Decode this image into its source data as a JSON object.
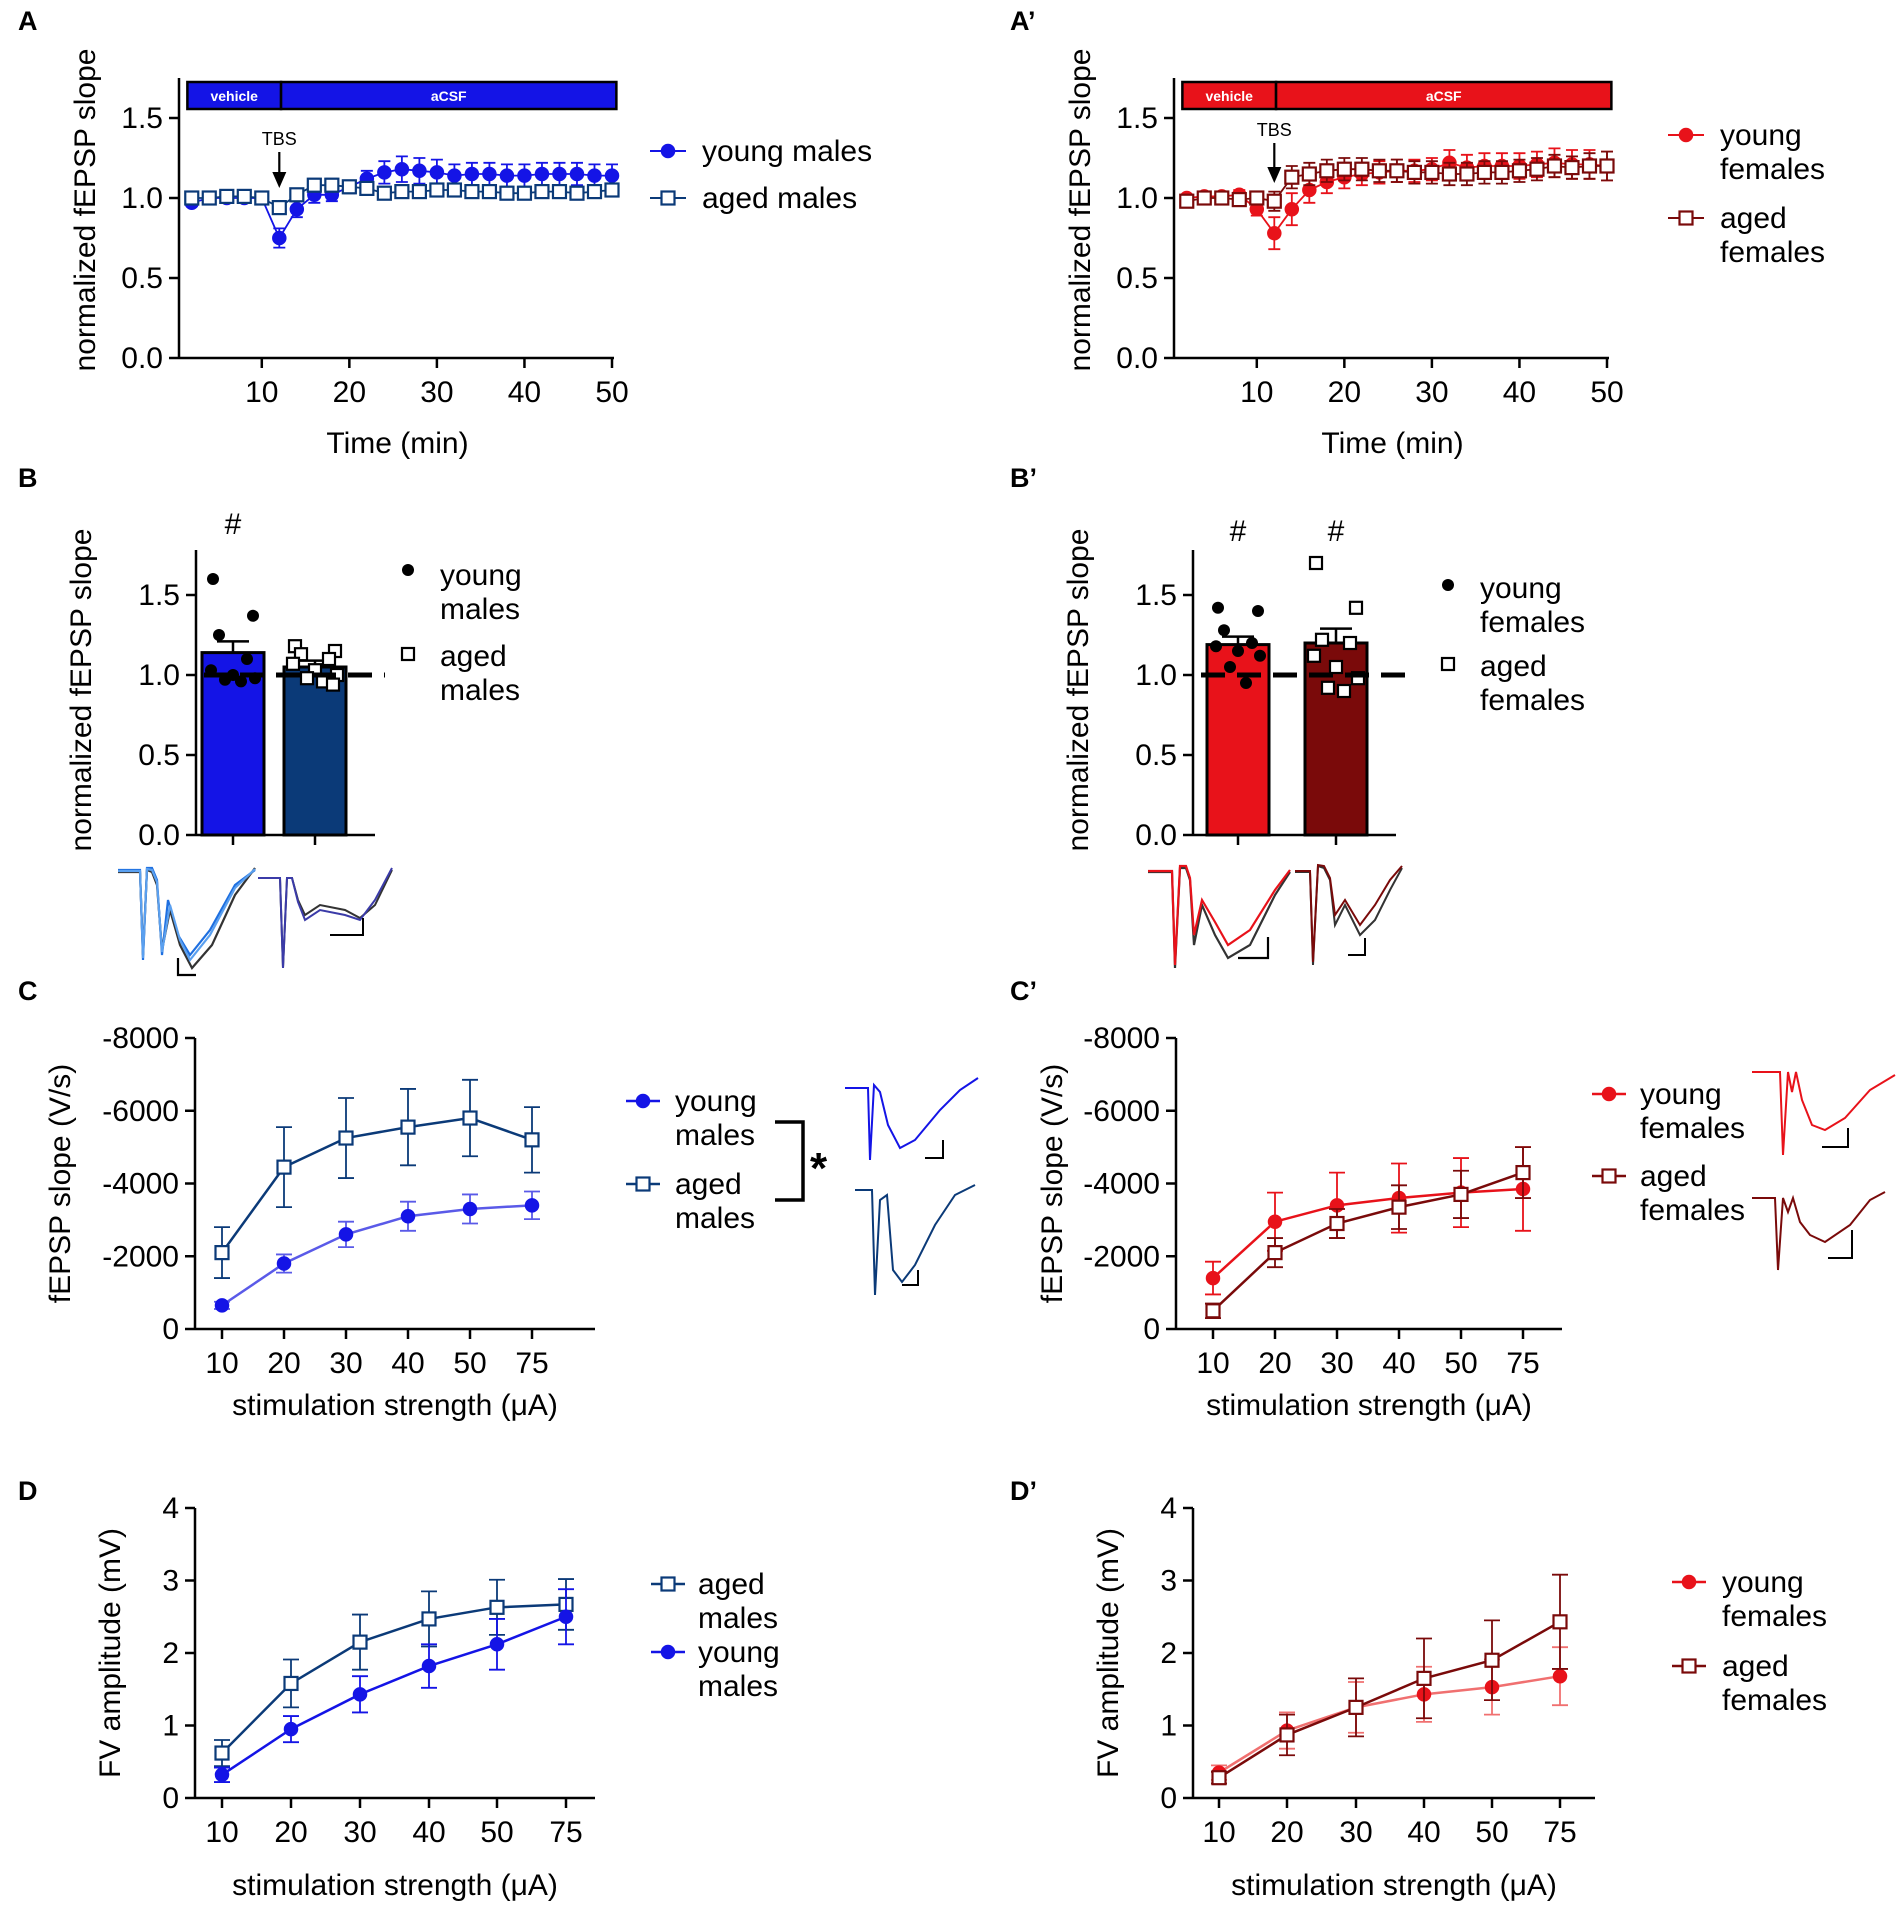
{
  "colors": {
    "young_male": "#1414e6",
    "aged_male": "#0b3a78",
    "young_male_light": "#5a5ae8",
    "young_female": "#e8121a",
    "aged_female": "#7a0a0a",
    "young_female_light": "#f07070"
  },
  "panels": {
    "A": "A",
    "A2": "A’",
    "B": "B",
    "B2": "B’",
    "C": "C",
    "C2": "C’",
    "D": "D",
    "D2": "D’"
  },
  "chart_data": [
    {
      "id": "A",
      "type": "line",
      "ylabel": "normalized fEPSP slope",
      "xlabel": "Time (min)",
      "xlim": [
        1,
        50
      ],
      "ylim": [
        0,
        1.75
      ],
      "xticks": [
        "10",
        "20",
        "30",
        "40",
        "50"
      ],
      "yticks": [
        "0.0",
        "0.5",
        "1.0",
        "1.5"
      ],
      "bar_labels": {
        "vehicle": "vehicle",
        "acsf": "aCSF"
      },
      "annotation": "TBS",
      "series": [
        {
          "name": "young males",
          "marker": "circle",
          "x": [
            2,
            4,
            6,
            8,
            10,
            12,
            14,
            16,
            18,
            20,
            22,
            24,
            26,
            28,
            30,
            32,
            34,
            36,
            38,
            40,
            42,
            44,
            46,
            48,
            50
          ],
          "values": [
            0.97,
            1.0,
            1.0,
            1.0,
            1.0,
            0.75,
            0.93,
            1.02,
            1.02,
            1.07,
            1.12,
            1.16,
            1.18,
            1.17,
            1.16,
            1.14,
            1.15,
            1.15,
            1.14,
            1.14,
            1.15,
            1.15,
            1.15,
            1.14,
            1.14
          ],
          "err": [
            0.02,
            0.02,
            0.02,
            0.02,
            0.02,
            0.06,
            0.05,
            0.05,
            0.04,
            0.04,
            0.05,
            0.07,
            0.08,
            0.08,
            0.08,
            0.07,
            0.07,
            0.07,
            0.07,
            0.07,
            0.07,
            0.07,
            0.07,
            0.07,
            0.07
          ]
        },
        {
          "name": "aged males",
          "marker": "square",
          "x": [
            2,
            4,
            6,
            8,
            10,
            12,
            14,
            16,
            18,
            20,
            22,
            24,
            26,
            28,
            30,
            32,
            34,
            36,
            38,
            40,
            42,
            44,
            46,
            48,
            50
          ],
          "values": [
            1.0,
            1.0,
            1.01,
            1.01,
            1.0,
            0.94,
            1.02,
            1.08,
            1.08,
            1.07,
            1.06,
            1.03,
            1.04,
            1.04,
            1.05,
            1.05,
            1.04,
            1.04,
            1.03,
            1.03,
            1.04,
            1.04,
            1.03,
            1.04,
            1.05
          ],
          "err": [
            0.02,
            0.02,
            0.02,
            0.02,
            0.02,
            0.04,
            0.04,
            0.04,
            0.04,
            0.04,
            0.04,
            0.04,
            0.04,
            0.04,
            0.04,
            0.04,
            0.04,
            0.04,
            0.04,
            0.04,
            0.04,
            0.04,
            0.04,
            0.04,
            0.04
          ]
        }
      ],
      "legend": [
        "young males",
        "aged males"
      ]
    },
    {
      "id": "A2",
      "type": "line",
      "ylabel": "normalized fEPSP slope",
      "xlabel": "Time (min)",
      "xlim": [
        1,
        50
      ],
      "ylim": [
        0,
        1.75
      ],
      "xticks": [
        "10",
        "20",
        "30",
        "40",
        "50"
      ],
      "yticks": [
        "0.0",
        "0.5",
        "1.0",
        "1.5"
      ],
      "bar_labels": {
        "vehicle": "vehicle",
        "acsf": "aCSF"
      },
      "annotation": "TBS",
      "series": [
        {
          "name": "young females",
          "marker": "circle",
          "x": [
            2,
            4,
            6,
            8,
            10,
            12,
            14,
            16,
            18,
            20,
            22,
            24,
            26,
            28,
            30,
            32,
            34,
            36,
            38,
            40,
            42,
            44,
            46,
            48,
            50
          ],
          "values": [
            1.0,
            1.01,
            1.01,
            1.02,
            0.93,
            0.78,
            0.93,
            1.05,
            1.1,
            1.13,
            1.15,
            1.16,
            1.17,
            1.17,
            1.18,
            1.22,
            1.19,
            1.2,
            1.2,
            1.2,
            1.21,
            1.22,
            1.21,
            1.21,
            1.2
          ],
          "err": [
            0.02,
            0.02,
            0.02,
            0.03,
            0.04,
            0.1,
            0.1,
            0.08,
            0.07,
            0.07,
            0.07,
            0.07,
            0.07,
            0.07,
            0.07,
            0.08,
            0.08,
            0.08,
            0.08,
            0.08,
            0.08,
            0.09,
            0.09,
            0.09,
            0.09
          ]
        },
        {
          "name": "aged females",
          "marker": "square",
          "x": [
            2,
            4,
            6,
            8,
            10,
            12,
            14,
            16,
            18,
            20,
            22,
            24,
            26,
            28,
            30,
            32,
            34,
            36,
            38,
            40,
            42,
            44,
            46,
            48,
            50
          ],
          "values": [
            0.98,
            1.0,
            1.0,
            0.99,
            1.0,
            0.98,
            1.13,
            1.15,
            1.17,
            1.18,
            1.18,
            1.17,
            1.17,
            1.16,
            1.16,
            1.15,
            1.15,
            1.16,
            1.16,
            1.17,
            1.18,
            1.2,
            1.19,
            1.2,
            1.2
          ],
          "err": [
            0.02,
            0.02,
            0.02,
            0.03,
            0.03,
            0.06,
            0.07,
            0.07,
            0.07,
            0.07,
            0.07,
            0.07,
            0.07,
            0.07,
            0.07,
            0.07,
            0.07,
            0.07,
            0.07,
            0.07,
            0.07,
            0.07,
            0.07,
            0.08,
            0.09
          ]
        }
      ],
      "legend": [
        "young\nfemales",
        "aged\nfemales"
      ]
    },
    {
      "id": "B",
      "type": "bar",
      "ylabel": "normalized fEPSP slope",
      "ylim": [
        0,
        1.75
      ],
      "yticks": [
        "0.0",
        "0.5",
        "1.0",
        "1.5"
      ],
      "categories": [
        "young males",
        "aged males"
      ],
      "values": [
        1.14,
        1.05
      ],
      "err": [
        0.07,
        0.04
      ],
      "points": [
        [
          1.6,
          1.37,
          1.25,
          1.1,
          1.03,
          1.0,
          0.98,
          0.97,
          0.96
        ],
        [
          1.18,
          1.15,
          1.13,
          1.1,
          1.07,
          1.03,
          1.0,
          0.98,
          0.96,
          0.94
        ]
      ],
      "annotations": [
        "#",
        ""
      ],
      "legend": [
        "young\nmales",
        "aged\nmales"
      ]
    },
    {
      "id": "B2",
      "type": "bar",
      "ylabel": "normalized fEPSP slope",
      "ylim": [
        0,
        1.75
      ],
      "yticks": [
        "0.0",
        "0.5",
        "1.0",
        "1.5"
      ],
      "categories": [
        "young females",
        "aged females"
      ],
      "values": [
        1.19,
        1.2
      ],
      "err": [
        0.05,
        0.09
      ],
      "points": [
        [
          1.42,
          1.4,
          1.28,
          1.2,
          1.18,
          1.15,
          1.12,
          1.05,
          0.95
        ],
        [
          1.7,
          1.42,
          1.22,
          1.2,
          1.12,
          1.05,
          0.98,
          0.92,
          0.9
        ]
      ],
      "annotations": [
        "#",
        "#"
      ],
      "legend": [
        "young\nfemales",
        "aged\nfemales"
      ]
    },
    {
      "id": "C",
      "type": "line",
      "ylabel": "fEPSP slope (V/s)",
      "xlabel": "stimulation strength (μA)",
      "categories": [
        "10",
        "20",
        "30",
        "40",
        "50",
        "75"
      ],
      "ylim": [
        0,
        -8000
      ],
      "yticks": [
        "0",
        "-2000",
        "-4000",
        "-6000",
        "-8000"
      ],
      "series": [
        {
          "name": "young males",
          "marker": "circle",
          "values": [
            -650,
            -1800,
            -2600,
            -3100,
            -3300,
            -3400
          ],
          "err": [
            100,
            250,
            350,
            400,
            400,
            380
          ]
        },
        {
          "name": "aged males",
          "marker": "square",
          "values": [
            -2100,
            -4450,
            -5250,
            -5550,
            -5800,
            -5200
          ],
          "err": [
            700,
            1100,
            1100,
            1050,
            1050,
            900
          ]
        }
      ],
      "legend": [
        "young\nmales",
        "aged\nmales"
      ],
      "significance": "*"
    },
    {
      "id": "C2",
      "type": "line",
      "ylabel": "fEPSP slope (V/s)",
      "xlabel": "stimulation strength (μA)",
      "categories": [
        "10",
        "20",
        "30",
        "40",
        "50",
        "75"
      ],
      "ylim": [
        0,
        -8000
      ],
      "yticks": [
        "0",
        "-2000",
        "-4000",
        "-6000",
        "-8000"
      ],
      "series": [
        {
          "name": "young females",
          "marker": "circle",
          "values": [
            -1400,
            -2950,
            -3400,
            -3600,
            -3750,
            -3850
          ],
          "err": [
            450,
            800,
            900,
            950,
            950,
            1150
          ]
        },
        {
          "name": "aged females",
          "marker": "square",
          "values": [
            -500,
            -2100,
            -2900,
            -3350,
            -3700,
            -4300
          ],
          "err": [
            200,
            400,
            400,
            600,
            650,
            700
          ]
        }
      ],
      "legend": [
        "young\nfemales",
        "aged\nfemales"
      ]
    },
    {
      "id": "D",
      "type": "line",
      "ylabel": "FV amplitude (mV)",
      "xlabel": "stimulation strength (μA)",
      "categories": [
        "10",
        "20",
        "30",
        "40",
        "50",
        "75"
      ],
      "ylim": [
        0,
        4
      ],
      "yticks": [
        "0",
        "1",
        "2",
        "3",
        "4"
      ],
      "series": [
        {
          "name": "aged males",
          "marker": "square",
          "values": [
            0.62,
            1.58,
            2.15,
            2.47,
            2.63,
            2.67
          ],
          "err": [
            0.18,
            0.33,
            0.38,
            0.38,
            0.38,
            0.35
          ]
        },
        {
          "name": "young males",
          "marker": "circle",
          "values": [
            0.32,
            0.95,
            1.43,
            1.82,
            2.12,
            2.5
          ],
          "err": [
            0.1,
            0.18,
            0.25,
            0.3,
            0.35,
            0.38
          ]
        }
      ],
      "legend": [
        "aged\nmales",
        "young\nmales"
      ]
    },
    {
      "id": "D2",
      "type": "line",
      "ylabel": "FV amplitude (mV)",
      "xlabel": "stimulation strength (μA)",
      "categories": [
        "10",
        "20",
        "30",
        "40",
        "50",
        "75"
      ],
      "ylim": [
        0,
        4
      ],
      "yticks": [
        "0",
        "1",
        "2",
        "3",
        "4"
      ],
      "series": [
        {
          "name": "young females",
          "marker": "circle",
          "values": [
            0.35,
            0.93,
            1.25,
            1.43,
            1.53,
            1.68
          ],
          "err": [
            0.1,
            0.25,
            0.35,
            0.38,
            0.38,
            0.4
          ]
        },
        {
          "name": "aged females",
          "marker": "square",
          "values": [
            0.28,
            0.87,
            1.25,
            1.65,
            1.9,
            2.43
          ],
          "err": [
            0.08,
            0.28,
            0.4,
            0.55,
            0.55,
            0.65
          ]
        }
      ],
      "legend": [
        "young\nfemales",
        "aged\nfemales"
      ]
    }
  ]
}
